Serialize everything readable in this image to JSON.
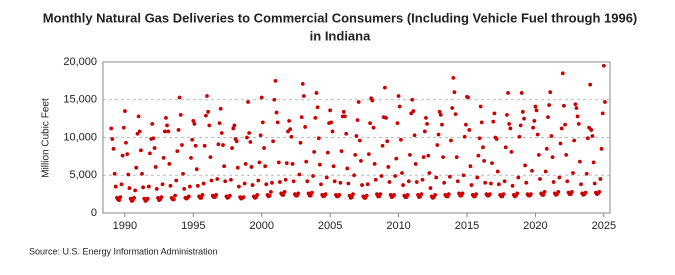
{
  "chart_data": {
    "type": "scatter",
    "title": [
      "Monthly Natural Gas Deliveries to Commercial Consumers (Including Vehicle Fuel through 1996)",
      "in Indiana"
    ],
    "ylabel": "Million Cubic Feet",
    "source": "Source: U.S. Energy Information Administration",
    "color": "#cc0000",
    "grid": true,
    "xlim": [
      1988.4,
      2025.45
    ],
    "xticks": [
      1990,
      1995,
      2000,
      2005,
      2010,
      2015,
      2020,
      2025
    ],
    "ylim": [
      0,
      20000
    ],
    "yticks": [
      0,
      {
        "value": 5000,
        "label": "5,000"
      },
      {
        "value": 10000,
        "label": "10,000"
      },
      {
        "value": 15000,
        "label": "15,000"
      },
      {
        "value": 20000,
        "label": "20,000"
      }
    ],
    "x": [
      1989,
      1989.08,
      1989.17,
      1989.25,
      1989.33,
      1989.42,
      1989.5,
      1989.58,
      1989.67,
      1989.75,
      1989.83,
      1989.92,
      1990,
      1990.08,
      1990.17,
      1990.25,
      1990.33,
      1990.42,
      1990.5,
      1990.58,
      1990.67,
      1990.75,
      1990.83,
      1990.92,
      1991,
      1991.08,
      1991.17,
      1991.25,
      1991.33,
      1991.42,
      1991.5,
      1991.58,
      1991.67,
      1991.75,
      1991.83,
      1991.92,
      1992,
      1992.08,
      1992.17,
      1992.25,
      1992.33,
      1992.42,
      1992.5,
      1992.58,
      1992.67,
      1992.75,
      1992.83,
      1992.92,
      1993,
      1993.08,
      1993.17,
      1993.25,
      1993.33,
      1993.42,
      1993.5,
      1993.58,
      1993.67,
      1993.75,
      1993.83,
      1993.92,
      1994,
      1994.08,
      1994.17,
      1994.25,
      1994.33,
      1994.42,
      1994.5,
      1994.58,
      1994.67,
      1994.75,
      1994.83,
      1994.92,
      1995,
      1995.08,
      1995.17,
      1995.25,
      1995.33,
      1995.42,
      1995.5,
      1995.58,
      1995.67,
      1995.75,
      1995.83,
      1995.92,
      1996,
      1996.08,
      1996.17,
      1996.25,
      1996.33,
      1996.42,
      1996.5,
      1996.58,
      1996.67,
      1996.75,
      1996.83,
      1996.92,
      1997,
      1997.08,
      1997.17,
      1997.25,
      1997.33,
      1997.42,
      1997.5,
      1997.58,
      1997.67,
      1997.75,
      1997.83,
      1997.92,
      1998,
      1998.08,
      1998.17,
      1998.25,
      1998.33,
      1998.42,
      1998.5,
      1998.58,
      1998.67,
      1998.75,
      1998.83,
      1998.92,
      1999,
      1999.08,
      1999.17,
      1999.25,
      1999.33,
      1999.42,
      1999.5,
      1999.58,
      1999.67,
      1999.75,
      1999.83,
      1999.92,
      2000,
      2000.08,
      2000.17,
      2000.25,
      2000.33,
      2000.42,
      2000.5,
      2000.58,
      2000.67,
      2000.75,
      2000.83,
      2000.92,
      2001,
      2001.08,
      2001.17,
      2001.25,
      2001.33,
      2001.42,
      2001.5,
      2001.58,
      2001.67,
      2001.75,
      2001.83,
      2001.92,
      2002,
      2002.08,
      2002.17,
      2002.25,
      2002.33,
      2002.42,
      2002.5,
      2002.58,
      2002.67,
      2002.75,
      2002.83,
      2002.92,
      2003,
      2003.08,
      2003.17,
      2003.25,
      2003.33,
      2003.42,
      2003.5,
      2003.58,
      2003.67,
      2003.75,
      2003.83,
      2003.92,
      2004,
      2004.08,
      2004.17,
      2004.25,
      2004.33,
      2004.42,
      2004.5,
      2004.58,
      2004.67,
      2004.75,
      2004.83,
      2004.92,
      2005,
      2005.08,
      2005.17,
      2005.25,
      2005.33,
      2005.42,
      2005.5,
      2005.58,
      2005.67,
      2005.75,
      2005.83,
      2005.92,
      2006,
      2006.08,
      2006.17,
      2006.25,
      2006.33,
      2006.42,
      2006.5,
      2006.58,
      2006.67,
      2006.75,
      2006.83,
      2006.92,
      2007,
      2007.08,
      2007.17,
      2007.25,
      2007.33,
      2007.42,
      2007.5,
      2007.58,
      2007.67,
      2007.75,
      2007.83,
      2007.92,
      2008,
      2008.08,
      2008.17,
      2008.25,
      2008.33,
      2008.42,
      2008.5,
      2008.58,
      2008.67,
      2008.75,
      2008.83,
      2008.92,
      2009,
      2009.08,
      2009.17,
      2009.25,
      2009.33,
      2009.42,
      2009.5,
      2009.58,
      2009.67,
      2009.75,
      2009.83,
      2009.92,
      2010,
      2010.08,
      2010.17,
      2010.25,
      2010.33,
      2010.42,
      2010.5,
      2010.58,
      2010.67,
      2010.75,
      2010.83,
      2010.92,
      2011,
      2011.08,
      2011.17,
      2011.25,
      2011.33,
      2011.42,
      2011.5,
      2011.58,
      2011.67,
      2011.75,
      2011.83,
      2011.92,
      2012,
      2012.08,
      2012.17,
      2012.25,
      2012.33,
      2012.42,
      2012.5,
      2012.58,
      2012.67,
      2012.75,
      2012.83,
      2012.92,
      2013,
      2013.08,
      2013.17,
      2013.25,
      2013.33,
      2013.42,
      2013.5,
      2013.58,
      2013.67,
      2013.75,
      2013.83,
      2013.92,
      2014,
      2014.08,
      2014.17,
      2014.25,
      2014.33,
      2014.42,
      2014.5,
      2014.58,
      2014.67,
      2014.75,
      2014.83,
      2014.92,
      2015,
      2015.08,
      2015.17,
      2015.25,
      2015.33,
      2015.42,
      2015.5,
      2015.58,
      2015.67,
      2015.75,
      2015.83,
      2015.92,
      2016,
      2016.08,
      2016.17,
      2016.25,
      2016.33,
      2016.42,
      2016.5,
      2016.58,
      2016.67,
      2016.75,
      2016.83,
      2016.92,
      2017,
      2017.08,
      2017.17,
      2017.25,
      2017.33,
      2017.42,
      2017.5,
      2017.58,
      2017.67,
      2017.75,
      2017.83,
      2017.92,
      2018,
      2018.08,
      2018.17,
      2018.25,
      2018.33,
      2018.42,
      2018.5,
      2018.58,
      2018.67,
      2018.75,
      2018.83,
      2018.92,
      2019,
      2019.08,
      2019.17,
      2019.25,
      2019.33,
      2019.42,
      2019.5,
      2019.58,
      2019.67,
      2019.75,
      2019.83,
      2019.92,
      2020,
      2020.08,
      2020.17,
      2020.25,
      2020.33,
      2020.42,
      2020.5,
      2020.58,
      2020.67,
      2020.75,
      2020.83,
      2020.92,
      2021,
      2021.08,
      2021.17,
      2021.25,
      2021.33,
      2021.42,
      2021.5,
      2021.58,
      2021.67,
      2021.75,
      2021.83,
      2021.92,
      2022,
      2022.08,
      2022.17,
      2022.25,
      2022.33,
      2022.42,
      2022.5,
      2022.58,
      2022.67,
      2022.75,
      2022.83,
      2022.92,
      2023,
      2023.08,
      2023.17,
      2023.25,
      2023.33,
      2023.42,
      2023.5,
      2023.58,
      2023.67,
      2023.75,
      2023.83,
      2023.92,
      2024,
      2024.08,
      2024.17,
      2024.25,
      2024.33,
      2024.42,
      2024.5,
      2024.58,
      2024.67,
      2024.75,
      2024.83,
      2024.92,
      2025,
      2025.08
    ],
    "values": [
      11200,
      9800,
      8500,
      5200,
      3500,
      2000,
      1800,
      1700,
      2100,
      3800,
      7600,
      11300,
      13500,
      9300,
      7800,
      5100,
      3300,
      1900,
      1600,
      1700,
      2000,
      3000,
      6000,
      10500,
      12800,
      10800,
      8300,
      5200,
      3400,
      1900,
      1600,
      1700,
      1900,
      3500,
      7900,
      9800,
      11800,
      9900,
      8600,
      6100,
      3200,
      2000,
      1700,
      1800,
      2100,
      3800,
      7300,
      10800,
      12600,
      11600,
      10800,
      6500,
      3600,
      2000,
      1800,
      1800,
      2300,
      4300,
      8200,
      11000,
      15300,
      13000,
      9000,
      5200,
      3200,
      2000,
      1900,
      2000,
      2200,
      3500,
      7300,
      9700,
      12200,
      11800,
      8900,
      5800,
      3600,
      2200,
      2000,
      2000,
      2400,
      3900,
      8900,
      12900,
      15500,
      13400,
      11600,
      7400,
      4300,
      2300,
      2100,
      2100,
      2400,
      4500,
      9100,
      11900,
      13800,
      10600,
      9000,
      6200,
      4200,
      2200,
      2000,
      2100,
      2300,
      4400,
      8600,
      11200,
      11600,
      9800,
      9500,
      6000,
      3500,
      2100,
      1900,
      2000,
      2100,
      3900,
      6500,
      10000,
      14700,
      10600,
      9400,
      6100,
      3700,
      2200,
      2000,
      2100,
      2400,
      4300,
      6700,
      10300,
      15300,
      12000,
      8600,
      6200,
      3800,
      2400,
      2200,
      2300,
      2800,
      4000,
      9500,
      15000,
      17500,
      13300,
      12000,
      6700,
      4100,
      2600,
      2400,
      2400,
      2800,
      4400,
      6600,
      10800,
      12200,
      11100,
      10100,
      6500,
      4200,
      2500,
      2300,
      2300,
      2600,
      5100,
      9300,
      12700,
      17100,
      15500,
      11400,
      6800,
      4200,
      2600,
      2300,
      2300,
      2700,
      4900,
      8100,
      12600,
      15900,
      14000,
      9900,
      6400,
      3800,
      2400,
      2200,
      2300,
      2500,
      4700,
      8000,
      11900,
      13600,
      12000,
      10800,
      6200,
      4200,
      2400,
      2200,
      2200,
      2400,
      4000,
      8200,
      12800,
      13400,
      12800,
      10500,
      5900,
      3900,
      2300,
      2000,
      2100,
      2500,
      5000,
      7700,
      10200,
      12300,
      14700,
      9600,
      6900,
      3700,
      2200,
      2000,
      2000,
      2300,
      3800,
      7800,
      11900,
      15200,
      14900,
      11300,
      6500,
      4400,
      2500,
      2200,
      2200,
      2500,
      4900,
      8900,
      12700,
      16600,
      12600,
      9500,
      6100,
      4100,
      2400,
      2100,
      2200,
      2400,
      4900,
      7200,
      11900,
      15500,
      14100,
      9700,
      5300,
      3700,
      2300,
      2100,
      2100,
      2400,
      4200,
      7700,
      13200,
      15000,
      13500,
      10300,
      6500,
      4100,
      2400,
      2100,
      2200,
      2500,
      4400,
      7400,
      10800,
      12600,
      11800,
      7600,
      5300,
      3300,
      2200,
      2000,
      2100,
      2400,
      4700,
      9000,
      10400,
      13400,
      13000,
      11700,
      7400,
      4000,
      2400,
      2200,
      2200,
      2500,
      4800,
      9600,
      13900,
      17900,
      16000,
      13100,
      7400,
      4200,
      2600,
      2300,
      2300,
      2600,
      5000,
      10100,
      11700,
      15400,
      15300,
      11000,
      6200,
      3700,
      2400,
      2200,
      2200,
      2500,
      4700,
      7600,
      9900,
      14100,
      12000,
      8700,
      6900,
      4000,
      2500,
      2300,
      2300,
      2500,
      3900,
      6600,
      12100,
      13200,
      10000,
      9800,
      5500,
      3800,
      2400,
      2200,
      2200,
      2500,
      4200,
      8700,
      13000,
      15900,
      11800,
      11200,
      8100,
      3600,
      2400,
      2200,
      2300,
      2600,
      4700,
      10100,
      11600,
      15900,
      13400,
      12500,
      6300,
      4000,
      2500,
      2300,
      2300,
      2500,
      5600,
      11300,
      12200,
      14100,
      13600,
      10400,
      7700,
      4500,
      2600,
      2400,
      2400,
      2800,
      5500,
      8500,
      12700,
      14300,
      16000,
      10200,
      7400,
      4100,
      2600,
      2400,
      2500,
      2800,
      4700,
      9200,
      11200,
      18500,
      14200,
      11700,
      7700,
      4200,
      2700,
      2500,
      2500,
      2800,
      5300,
      9600,
      14400,
      13900,
      12800,
      11800,
      6800,
      3800,
      2600,
      2400,
      2500,
      2700,
      5200,
      9900,
      11300,
      17000,
      11000,
      10200,
      6700,
      3900,
      2700,
      2500,
      2600,
      2800,
      4500,
      8500,
      13200,
      19500,
      14700
    ]
  }
}
